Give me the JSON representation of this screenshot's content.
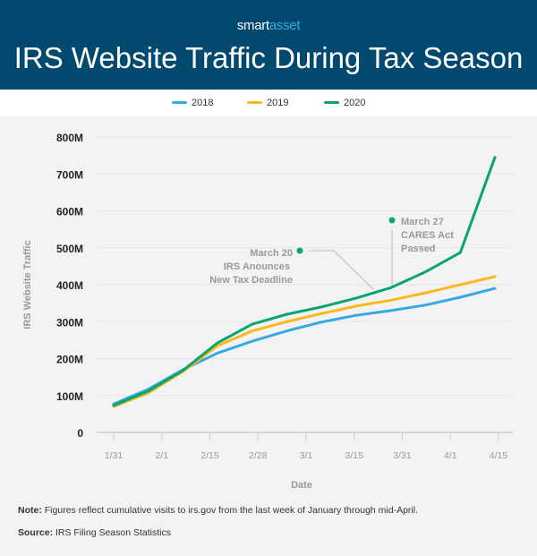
{
  "header": {
    "logo_part1": "smart",
    "logo_part2": "asset",
    "title": "IRS Website Traffic During Tax Season"
  },
  "colors": {
    "header_bg": "#02496f",
    "2018": "#36a9e1",
    "2019": "#fbb81c",
    "2020": "#0aa56d",
    "annotation": "#999999"
  },
  "chart_data": {
    "type": "line",
    "title": "IRS Website Traffic During Tax Season",
    "xlabel": "Date",
    "ylabel": "IRS Website Traffic",
    "x_tick_labels": [
      "1/31",
      "2/1",
      "2/15",
      "2/28",
      "3/1",
      "3/15",
      "3/31",
      "4/1",
      "4/15"
    ],
    "y_tick_labels": [
      "0",
      "100M",
      "200M",
      "300M",
      "400M",
      "500M",
      "600M",
      "700M",
      "800M"
    ],
    "ylim": [
      0,
      800
    ],
    "y_unit": "millions of visits",
    "grid": true,
    "legend": "top-center",
    "series": [
      {
        "name": "2018",
        "values": [
          77,
          117,
          170,
          215,
          247,
          275,
          299,
          317,
          330,
          345,
          366,
          390
        ]
      },
      {
        "name": "2019",
        "values": [
          70,
          107,
          165,
          235,
          275,
          300,
          322,
          342,
          358,
          378,
          400,
          422
        ]
      },
      {
        "name": "2020",
        "values": [
          73,
          112,
          168,
          243,
          293,
          320,
          340,
          364,
          392,
          435,
          487,
          745
        ]
      }
    ],
    "annotations": [
      {
        "lines": [
          "March 20",
          "IRS Anounces",
          "New Tax Deadline"
        ]
      },
      {
        "lines": [
          "March 27",
          "CARES Act",
          "Passed"
        ]
      }
    ]
  },
  "footer": {
    "note_label": "Note:",
    "note": "Figures reflect cumulative visits to irs.gov from the last week of January through mid-April.",
    "source_label": "Source:",
    "source": "IRS Filing Season Statistics"
  }
}
